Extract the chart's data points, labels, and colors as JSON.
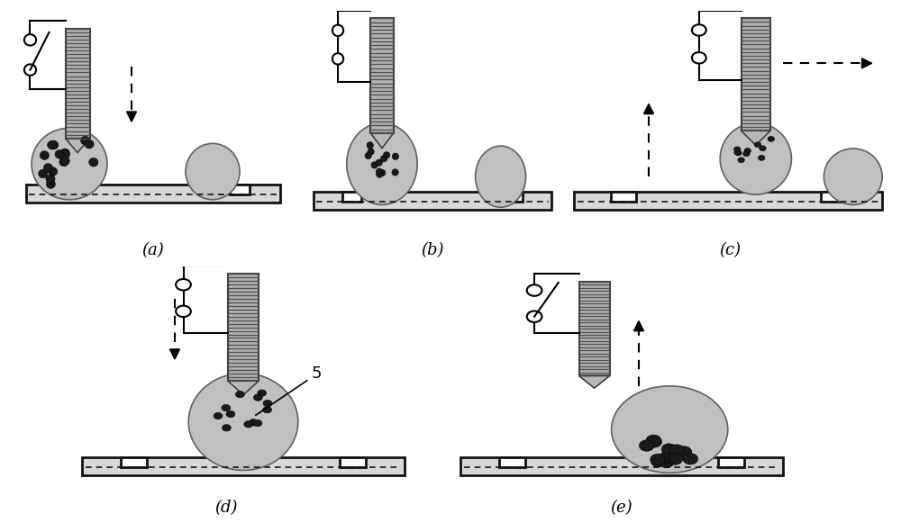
{
  "fig_width": 10.0,
  "fig_height": 5.91,
  "bg_color": "#ffffff",
  "panel_labels": [
    "(a)",
    "(b)",
    "(c)",
    "(d)",
    "(e)"
  ],
  "coil_facecolor": "#b0b0b0",
  "coil_stripecolor": "#505050",
  "drop_color": "#c0c0c0",
  "particle_color": "#1a1a1a",
  "board_facecolor": "#d8d8d8",
  "board_edgecolor": "#111111",
  "label_fontsize": 13
}
